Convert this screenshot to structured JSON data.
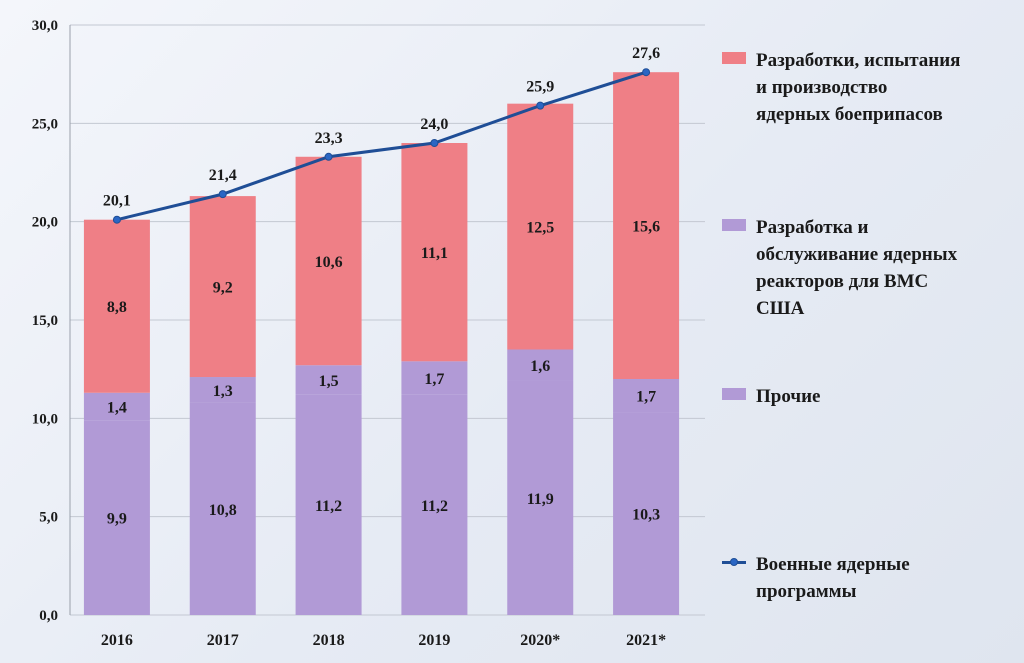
{
  "chart_data": {
    "type": "bar",
    "stacked": true,
    "categories": [
      "2016",
      "2017",
      "2018",
      "2019",
      "2020*",
      "2021*"
    ],
    "ylim": [
      0,
      30
    ],
    "yticks": [
      "0,0",
      "5,0",
      "10,0",
      "15,0",
      "20,0",
      "25,0",
      "30,0"
    ],
    "ytick_values": [
      0,
      5,
      10,
      15,
      20,
      25,
      30
    ],
    "grid": true,
    "legend_position": "right",
    "series": [
      {
        "name": "Прочие",
        "color": "#b19ad6",
        "values": [
          9.9,
          10.8,
          11.2,
          11.2,
          11.9,
          10.3
        ],
        "labels": [
          "9,9",
          "10,8",
          "11,2",
          "11,2",
          "11,9",
          "10,3"
        ]
      },
      {
        "name": "Разработка и обслуживание ядерных реакторов для ВМС США",
        "color": "#b19ad6",
        "values": [
          1.4,
          1.3,
          1.5,
          1.7,
          1.6,
          1.7
        ],
        "labels": [
          "1,4",
          "1,3",
          "1,5",
          "1,7",
          "1,6",
          "1,7"
        ]
      },
      {
        "name": "Разработки, испытания и производство ядерных боеприпасов",
        "color": "#ef7f86",
        "values": [
          8.8,
          9.2,
          10.6,
          11.1,
          12.5,
          15.6
        ],
        "labels": [
          "8,8",
          "9,2",
          "10,6",
          "11,1",
          "12,5",
          "15,6"
        ]
      }
    ],
    "line_series": {
      "name": "Военные ядерные программы",
      "color": "#1f4e96",
      "values": [
        20.1,
        21.4,
        23.3,
        24.0,
        25.9,
        27.6
      ],
      "labels": [
        "20,1",
        "21,4",
        "23,3",
        "24,0",
        "25,9",
        "27,6"
      ]
    }
  },
  "legend": {
    "items": [
      {
        "kind": "box",
        "color": "#ef7f86",
        "text": "Разработки, испытания\nи производство\nядерных боеприпасов"
      },
      {
        "kind": "box",
        "color": "#b19ad6",
        "text": "Разработка и\nобслуживание ядерных\nреакторов для ВМС\nСША"
      },
      {
        "kind": "box",
        "color": "#b19ad6",
        "text": "Прочие"
      },
      {
        "kind": "line",
        "color": "#1f4e96",
        "text": "Военные ядерные\nпрограммы"
      }
    ]
  }
}
